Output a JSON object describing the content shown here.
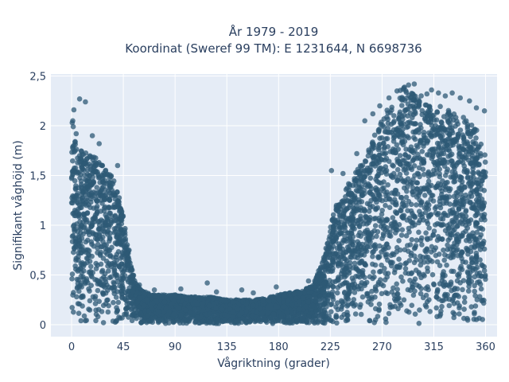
{
  "chart_data": {
    "type": "scatter",
    "title": "År 1979 - 2019",
    "subtitle": "Koordinat (Sweref 99 TM): E 1231644, N 6698736",
    "xlabel": "Vågriktning (grader)",
    "ylabel": "Signifikant våghöjd (m)",
    "xlim": [
      -18,
      370
    ],
    "ylim": [
      -0.12,
      2.52
    ],
    "x_ticks": [
      0,
      45,
      90,
      135,
      180,
      225,
      270,
      315,
      360
    ],
    "x_tick_labels": [
      "0",
      "45",
      "90",
      "135",
      "180",
      "225",
      "270",
      "315",
      "360"
    ],
    "y_ticks": [
      0,
      0.5,
      1,
      1.5,
      2,
      2.5
    ],
    "y_tick_labels": [
      "0",
      "0,5",
      "1",
      "1,5",
      "2",
      "2,5"
    ],
    "grid": true,
    "marker_color": "#2e5a76",
    "plot_background": "#e5ecf6",
    "series": [
      {
        "envelope": {
          "x": [
            0,
            5,
            10,
            15,
            20,
            25,
            30,
            35,
            40,
            45,
            50,
            55,
            60,
            70,
            80,
            90,
            100,
            110,
            120,
            130,
            140,
            150,
            160,
            170,
            180,
            190,
            200,
            210,
            215,
            220,
            225,
            230,
            240,
            250,
            260,
            270,
            280,
            285,
            290,
            295,
            300,
            305,
            310,
            315,
            320,
            330,
            340,
            350,
            355,
            360
          ],
          "ymax": [
            2.1,
            1.8,
            1.75,
            1.7,
            1.7,
            1.65,
            1.6,
            1.5,
            1.4,
            1.1,
            0.7,
            0.45,
            0.35,
            0.3,
            0.3,
            0.3,
            0.28,
            0.28,
            0.28,
            0.26,
            0.25,
            0.25,
            0.25,
            0.27,
            0.3,
            0.32,
            0.34,
            0.4,
            0.55,
            0.7,
            1.0,
            1.2,
            1.4,
            1.6,
            1.8,
            2.1,
            2.25,
            2.35,
            2.4,
            2.35,
            2.3,
            2.25,
            2.2,
            2.2,
            2.2,
            2.15,
            2.1,
            2.0,
            1.9,
            1.7
          ]
        },
        "outliers": [
          {
            "x": 2,
            "y": 2.16
          },
          {
            "x": 7,
            "y": 2.27
          },
          {
            "x": 12,
            "y": 2.24
          },
          {
            "x": 1,
            "y": 2.05
          },
          {
            "x": 4,
            "y": 1.92
          },
          {
            "x": 18,
            "y": 1.9
          },
          {
            "x": 24,
            "y": 1.82
          },
          {
            "x": 40,
            "y": 1.6
          },
          {
            "x": 50,
            "y": 0.75
          },
          {
            "x": 59,
            "y": 0.4
          },
          {
            "x": 72,
            "y": 0.35
          },
          {
            "x": 95,
            "y": 0.36
          },
          {
            "x": 118,
            "y": 0.42
          },
          {
            "x": 126,
            "y": 0.33
          },
          {
            "x": 148,
            "y": 0.35
          },
          {
            "x": 158,
            "y": 0.32
          },
          {
            "x": 178,
            "y": 0.38
          },
          {
            "x": 206,
            "y": 0.44
          },
          {
            "x": 218,
            "y": 0.62
          },
          {
            "x": 226,
            "y": 1.55
          },
          {
            "x": 236,
            "y": 1.52
          },
          {
            "x": 248,
            "y": 1.72
          },
          {
            "x": 255,
            "y": 2.05
          },
          {
            "x": 262,
            "y": 2.12
          },
          {
            "x": 268,
            "y": 2.2
          },
          {
            "x": 276,
            "y": 2.28
          },
          {
            "x": 283,
            "y": 2.35
          },
          {
            "x": 289,
            "y": 2.38
          },
          {
            "x": 293,
            "y": 2.41
          },
          {
            "x": 298,
            "y": 2.42
          },
          {
            "x": 304,
            "y": 2.3
          },
          {
            "x": 309,
            "y": 2.32
          },
          {
            "x": 313,
            "y": 2.36
          },
          {
            "x": 319,
            "y": 2.33
          },
          {
            "x": 325,
            "y": 2.3
          },
          {
            "x": 331,
            "y": 2.33
          },
          {
            "x": 338,
            "y": 2.28
          },
          {
            "x": 346,
            "y": 2.25
          },
          {
            "x": 352,
            "y": 2.18
          },
          {
            "x": 359,
            "y": 2.15
          }
        ]
      }
    ]
  }
}
